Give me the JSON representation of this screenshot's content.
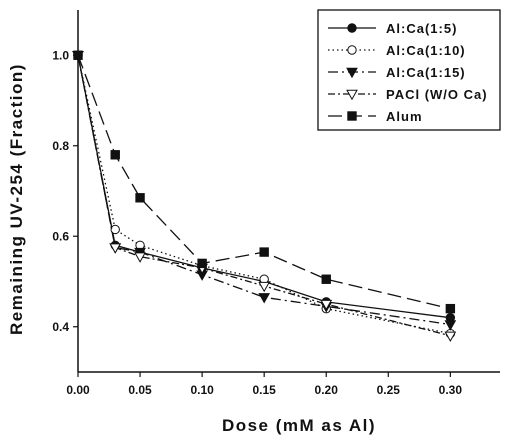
{
  "chart_data": {
    "type": "line",
    "xlabel": "Dose (mM as Al)",
    "ylabel": "Remaining UV-254 (Fraction)",
    "xlim": [
      0,
      0.34
    ],
    "ylim": [
      0.3,
      1.1
    ],
    "x_ticks": [
      "0.00",
      "0.05",
      "0.10",
      "0.15",
      "0.20",
      "0.25",
      "0.30"
    ],
    "x_tick_values": [
      0,
      0.05,
      0.1,
      0.15,
      0.2,
      0.25,
      0.3
    ],
    "y_ticks": [
      "0.4",
      "0.6",
      "0.8",
      "1.0"
    ],
    "y_tick_values": [
      0.4,
      0.6,
      0.8,
      1.0
    ],
    "grid": false,
    "legend_position": "top-right",
    "series": [
      {
        "name": "Al:Ca(1:5)",
        "marker": "filled-circle",
        "dash": "solid",
        "x": [
          0,
          0.03,
          0.05,
          0.1,
          0.15,
          0.2,
          0.3
        ],
        "y": [
          1.0,
          0.58,
          0.565,
          0.53,
          0.5,
          0.455,
          0.42
        ]
      },
      {
        "name": "Al:Ca(1:10)",
        "marker": "open-circle",
        "dash": "dotted",
        "x": [
          0,
          0.03,
          0.05,
          0.1,
          0.15,
          0.2,
          0.3
        ],
        "y": [
          1.0,
          0.615,
          0.58,
          0.535,
          0.505,
          0.44,
          0.385
        ]
      },
      {
        "name": "Al:Ca(1:15)",
        "marker": "filled-triangle-down",
        "dash": "dashdot",
        "x": [
          0,
          0.03,
          0.05,
          0.1,
          0.15,
          0.2,
          0.3
        ],
        "y": [
          1.0,
          0.575,
          0.565,
          0.515,
          0.465,
          0.445,
          0.405
        ]
      },
      {
        "name": "PACl (W/O Ca)",
        "marker": "open-triangle-down",
        "dash": "dashdot2",
        "x": [
          0,
          0.03,
          0.05,
          0.1,
          0.15,
          0.2,
          0.3
        ],
        "y": [
          1.0,
          0.575,
          0.555,
          0.53,
          0.49,
          0.45,
          0.38
        ]
      },
      {
        "name": "Alum",
        "marker": "filled-square",
        "dash": "longdash",
        "x": [
          0,
          0.03,
          0.05,
          0.1,
          0.15,
          0.2,
          0.3
        ],
        "y": [
          1.0,
          0.78,
          0.685,
          0.54,
          0.565,
          0.505,
          0.44
        ]
      }
    ]
  }
}
